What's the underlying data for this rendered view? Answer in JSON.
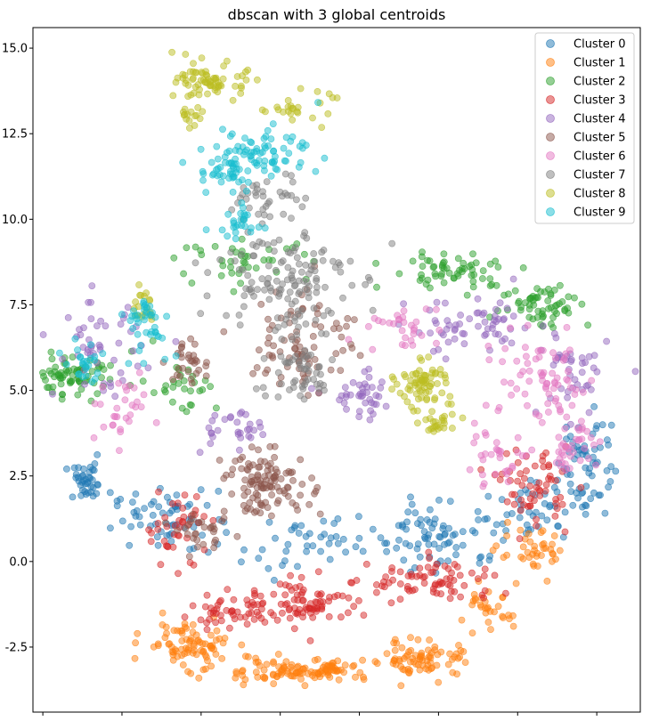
{
  "chart_data": {
    "type": "scatter",
    "title": "dbscan with 3 global centroids",
    "xlabel": "",
    "ylabel": "",
    "xlim": [
      -3.15,
      12.2
    ],
    "ylim": [
      -4.4,
      15.6
    ],
    "x_ticks": [
      -2.9,
      -0.9,
      1.1,
      3.1,
      5.1,
      7.1,
      9.1,
      11.1
    ],
    "y_ticks": [
      -2.5,
      0.0,
      2.5,
      5.0,
      7.5,
      10.0,
      12.5,
      15.0
    ],
    "y_tick_labels": [
      "-2.5",
      "0.0",
      "2.5",
      "5.0",
      "7.5",
      "10.0",
      "12.5",
      "15.0"
    ],
    "grid": false,
    "legend_position": "top-right",
    "marker_alpha": 0.5,
    "series": [
      {
        "name": "Cluster 0",
        "color": "#1f77b4",
        "regions": [
          [
            -1.8,
            2.3,
            0.5,
            0.5,
            40
          ],
          [
            0.2,
            1.2,
            1.2,
            0.8,
            60
          ],
          [
            7.2,
            0.8,
            1.5,
            1.0,
            80
          ],
          [
            10.8,
            3.0,
            0.6,
            1.5,
            60
          ],
          [
            3.8,
            0.5,
            1.5,
            0.8,
            40
          ],
          [
            9.5,
            1.5,
            1.0,
            0.8,
            40
          ]
        ]
      },
      {
        "name": "Cluster 1",
        "color": "#ff7f0e",
        "regions": [
          [
            0.8,
            -2.4,
            1.0,
            0.6,
            80
          ],
          [
            3.5,
            -3.2,
            2.0,
            0.3,
            120
          ],
          [
            6.8,
            -2.8,
            1.0,
            0.5,
            70
          ],
          [
            9.5,
            0.2,
            0.8,
            0.6,
            40
          ],
          [
            8.3,
            -1.5,
            0.6,
            0.6,
            30
          ]
        ]
      },
      {
        "name": "Cluster 2",
        "color": "#2ca02c",
        "regions": [
          [
            -2.2,
            5.4,
            0.9,
            0.5,
            70
          ],
          [
            2.2,
            8.8,
            1.5,
            0.5,
            40
          ],
          [
            7.5,
            8.5,
            1.5,
            0.5,
            60
          ],
          [
            9.8,
            7.5,
            1.0,
            0.6,
            60
          ],
          [
            0.5,
            5.2,
            1.0,
            0.8,
            30
          ]
        ]
      },
      {
        "name": "Cluster 3",
        "color": "#d62728",
        "regions": [
          [
            3.8,
            -1.2,
            1.5,
            0.6,
            90
          ],
          [
            7.0,
            -0.6,
            1.5,
            0.6,
            70
          ],
          [
            9.5,
            2.2,
            0.8,
            1.0,
            60
          ],
          [
            0.5,
            1.0,
            0.8,
            1.0,
            40
          ],
          [
            1.8,
            -1.5,
            0.9,
            0.5,
            40
          ]
        ]
      },
      {
        "name": "Cluster 4",
        "color": "#9467bd",
        "regions": [
          [
            -1.5,
            6.2,
            1.0,
            1.2,
            50
          ],
          [
            5.2,
            4.8,
            0.8,
            0.6,
            40
          ],
          [
            8.0,
            6.8,
            1.5,
            0.8,
            60
          ],
          [
            10.5,
            5.5,
            0.8,
            1.2,
            40
          ],
          [
            1.8,
            3.8,
            0.8,
            0.6,
            30
          ]
        ]
      },
      {
        "name": "Cluster 5",
        "color": "#8c564b",
        "regions": [
          [
            2.8,
            2.3,
            1.0,
            0.8,
            110
          ],
          [
            3.7,
            6.5,
            1.2,
            1.5,
            80
          ],
          [
            0.8,
            5.8,
            0.6,
            0.6,
            30
          ],
          [
            1.2,
            0.8,
            0.6,
            0.5,
            30
          ]
        ]
      },
      {
        "name": "Cluster 6",
        "color": "#e377c2",
        "regions": [
          [
            9.7,
            5.2,
            1.3,
            1.2,
            70
          ],
          [
            10.5,
            3.5,
            0.6,
            0.8,
            40
          ],
          [
            6.2,
            6.8,
            0.8,
            0.6,
            30
          ],
          [
            -1.0,
            4.5,
            0.8,
            0.8,
            30
          ],
          [
            8.5,
            3.0,
            0.8,
            0.8,
            30
          ]
        ]
      },
      {
        "name": "Cluster 7",
        "color": "#7f7f7f",
        "regions": [
          [
            3.2,
            8.3,
            1.5,
            1.5,
            130
          ],
          [
            3.5,
            5.5,
            1.0,
            0.8,
            50
          ],
          [
            2.8,
            10.5,
            0.8,
            0.8,
            40
          ]
        ]
      },
      {
        "name": "Cluster 8",
        "color": "#bcbd22",
        "regions": [
          [
            1.4,
            14.0,
            0.8,
            0.5,
            70
          ],
          [
            3.5,
            13.3,
            0.8,
            0.4,
            25
          ],
          [
            6.7,
            5.2,
            0.6,
            0.6,
            70
          ],
          [
            7.1,
            4.0,
            0.4,
            0.4,
            25
          ],
          [
            -0.4,
            7.5,
            0.3,
            0.6,
            20
          ],
          [
            0.8,
            13.0,
            0.3,
            0.3,
            15
          ]
        ]
      },
      {
        "name": "Cluster 9",
        "color": "#17becf",
        "regions": [
          [
            1.8,
            11.5,
            0.7,
            0.8,
            60
          ],
          [
            3.0,
            12.0,
            1.0,
            0.6,
            50
          ],
          [
            -0.3,
            7.0,
            0.6,
            0.8,
            40
          ],
          [
            2.0,
            9.8,
            0.5,
            0.5,
            25
          ],
          [
            -1.8,
            5.8,
            0.5,
            0.5,
            25
          ]
        ]
      }
    ]
  }
}
